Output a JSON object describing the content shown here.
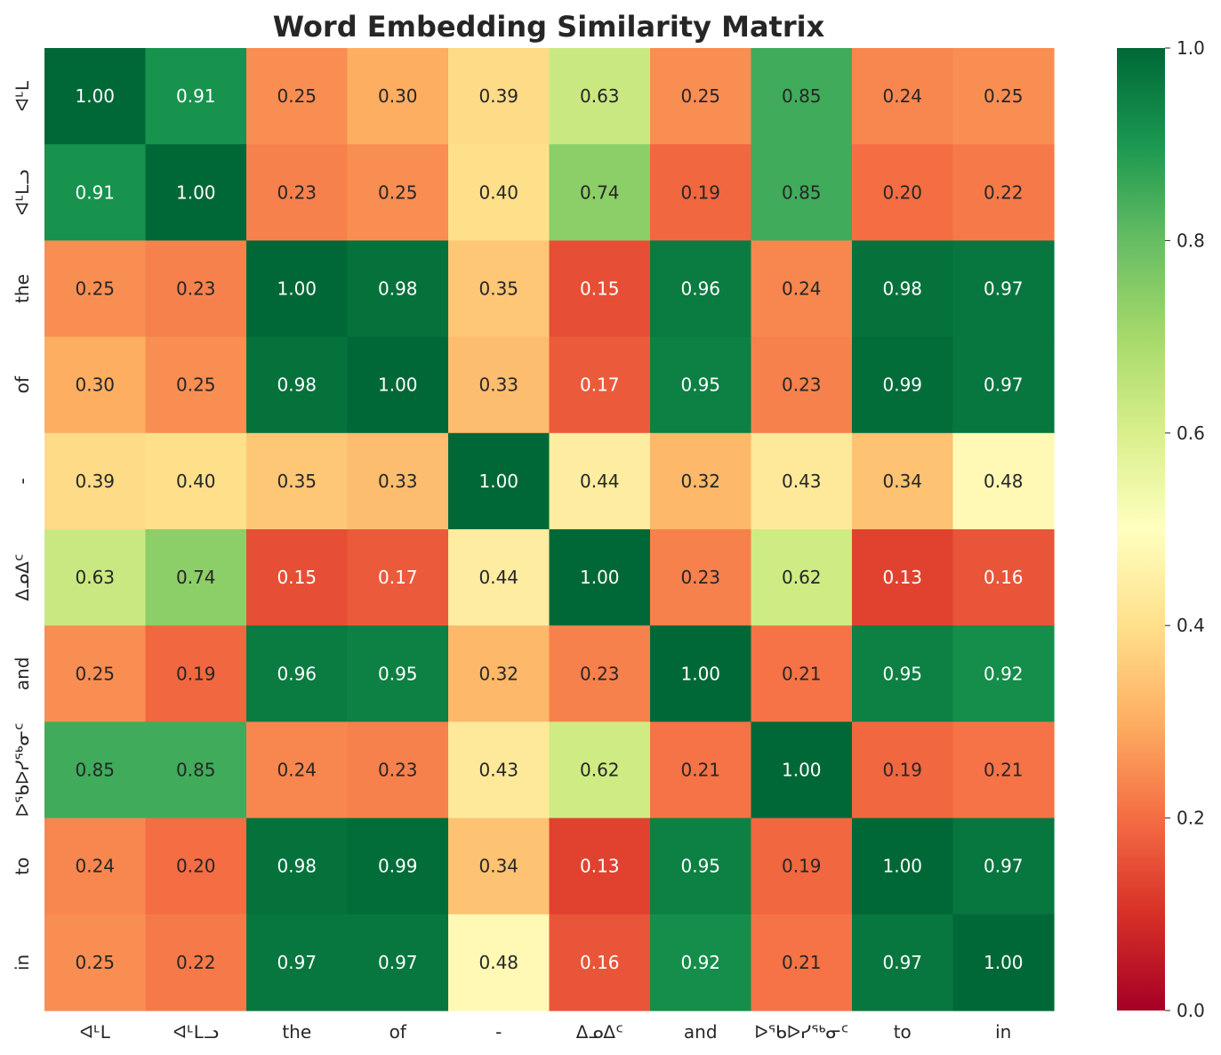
{
  "chart_data": {
    "type": "heatmap",
    "title": "Word Embedding Similarity Matrix",
    "xlabel": "",
    "ylabel": "",
    "labels": [
      "ᐊᒻᒪ",
      "ᐊᒻᒪᓗ",
      "the",
      "of",
      "-",
      "ᐃᓄᐃᑦ",
      "and",
      "ᐅᖃᐅᓯᖅᓂᑦ",
      "to",
      "in"
    ],
    "values": [
      [
        1.0,
        0.91,
        0.25,
        0.3,
        0.39,
        0.63,
        0.25,
        0.85,
        0.24,
        0.25
      ],
      [
        0.91,
        1.0,
        0.23,
        0.25,
        0.4,
        0.74,
        0.19,
        0.85,
        0.2,
        0.22
      ],
      [
        0.25,
        0.23,
        1.0,
        0.98,
        0.35,
        0.15,
        0.96,
        0.24,
        0.98,
        0.97
      ],
      [
        0.3,
        0.25,
        0.98,
        1.0,
        0.33,
        0.17,
        0.95,
        0.23,
        0.99,
        0.97
      ],
      [
        0.39,
        0.4,
        0.35,
        0.33,
        1.0,
        0.44,
        0.32,
        0.43,
        0.34,
        0.48
      ],
      [
        0.63,
        0.74,
        0.15,
        0.17,
        0.44,
        1.0,
        0.23,
        0.62,
        0.13,
        0.16
      ],
      [
        0.25,
        0.19,
        0.96,
        0.95,
        0.32,
        0.23,
        1.0,
        0.21,
        0.95,
        0.92
      ],
      [
        0.85,
        0.85,
        0.24,
        0.23,
        0.43,
        0.62,
        0.21,
        1.0,
        0.19,
        0.21
      ],
      [
        0.24,
        0.2,
        0.98,
        0.99,
        0.34,
        0.13,
        0.95,
        0.19,
        1.0,
        0.97
      ],
      [
        0.25,
        0.22,
        0.97,
        0.97,
        0.48,
        0.16,
        0.92,
        0.21,
        0.97,
        1.0
      ]
    ],
    "value_format": "0.00",
    "colormap": "RdYlGn",
    "vmin": 0.0,
    "vmax": 1.0,
    "colorbar_ticks": [
      "0.0",
      "0.2",
      "0.4",
      "0.6",
      "0.8",
      "1.0"
    ],
    "grid": false,
    "colorbar_position": "right"
  }
}
